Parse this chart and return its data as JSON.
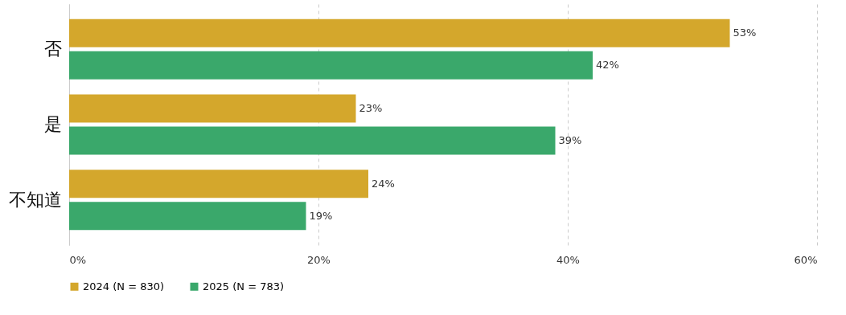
{
  "chart_data": {
    "type": "bar",
    "orientation": "horizontal",
    "categories": [
      "否",
      "是",
      "不知道"
    ],
    "series": [
      {
        "name": "2024 (N = 830)",
        "color": "#d4a72c",
        "values": [
          53,
          23,
          24
        ],
        "value_labels": [
          "53%",
          "23%",
          "24%"
        ]
      },
      {
        "name": "2025 (N = 783)",
        "color": "#3aa86b",
        "values": [
          42,
          39,
          19
        ],
        "value_labels": [
          "42%",
          "39%",
          "19%"
        ]
      }
    ],
    "xlim": [
      0,
      60
    ],
    "xticks": [
      {
        "value": 0,
        "label": "0%"
      },
      {
        "value": 20,
        "label": "20%"
      },
      {
        "value": 40,
        "label": "40%"
      },
      {
        "value": 60,
        "label": "60%"
      }
    ],
    "grid": "x",
    "legend": "bottom"
  }
}
